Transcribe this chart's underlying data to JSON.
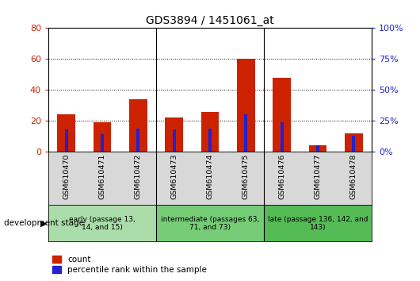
{
  "title": "GDS3894 / 1451061_at",
  "samples": [
    "GSM610470",
    "GSM610471",
    "GSM610472",
    "GSM610473",
    "GSM610474",
    "GSM610475",
    "GSM610476",
    "GSM610477",
    "GSM610478"
  ],
  "counts": [
    24,
    19,
    34,
    22,
    26,
    60,
    48,
    4,
    12
  ],
  "percentile_ranks": [
    18,
    14,
    19,
    18,
    19,
    30,
    24,
    5,
    13
  ],
  "left_ylim": [
    0,
    80
  ],
  "right_ylim": [
    0,
    100
  ],
  "left_yticks": [
    0,
    20,
    40,
    60,
    80
  ],
  "right_yticks": [
    0,
    25,
    50,
    75,
    100
  ],
  "count_color": "#cc2200",
  "percentile_color": "#2222cc",
  "bar_width": 0.5,
  "groups": [
    {
      "label": "early (passage 13,\n14, and 15)",
      "indices": [
        0,
        1,
        2
      ],
      "color": "#aaddaa"
    },
    {
      "label": "intermediate (passages 63,\n71, and 73)",
      "indices": [
        3,
        4,
        5
      ],
      "color": "#77cc77"
    },
    {
      "label": "late (passage 136, 142, and\n143)",
      "indices": [
        6,
        7,
        8
      ],
      "color": "#55bb55"
    }
  ],
  "group_dividers": [
    2.5,
    5.5
  ],
  "axis_bg_color": "#d8d8d8",
  "plot_bg_color": "#ffffff",
  "grid_color": "#000000",
  "title_color": "#000000",
  "left_label_color": "#cc2200",
  "right_label_color": "#2222cc",
  "dev_label": "development stage",
  "legend_count": "count",
  "legend_percentile": "percentile rank within the sample"
}
